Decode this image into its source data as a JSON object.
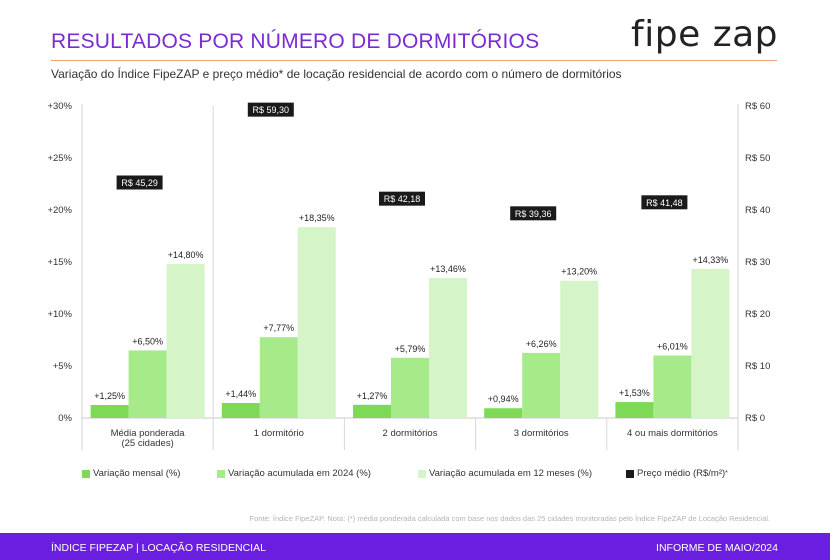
{
  "header": {
    "title": "RESULTADOS POR NÚMERO DE DORMITÓRIOS",
    "subtitle": "Variação do Índice FipeZAP e preço médio* de locação residencial de acordo com o número de dormitórios",
    "logo_fipe": "fipe",
    "logo_zap": "zap"
  },
  "chart_data": {
    "type": "bar",
    "categories": [
      "Média ponderada\n(25 cidades)",
      "1 dormitório",
      "2 dormitórios",
      "3 dormitórios",
      "4 ou mais dormitórios"
    ],
    "series": [
      {
        "name": "Variação mensal (%)",
        "axis": "left",
        "values": [
          1.25,
          1.44,
          1.27,
          0.94,
          1.53
        ],
        "labels": [
          "+1,25%",
          "+1,44%",
          "+1,27%",
          "+0,94%",
          "+1,53%"
        ],
        "color": "#7ed957"
      },
      {
        "name": "Variação acumulada em 2024 (%)",
        "axis": "left",
        "values": [
          6.5,
          7.77,
          5.79,
          6.26,
          6.01
        ],
        "labels": [
          "+6,50%",
          "+7,77%",
          "+5,79%",
          "+6,26%",
          "+6,01%"
        ],
        "color": "#a6ea8a"
      },
      {
        "name": "Variação acumulada em 12 meses (%)",
        "axis": "left",
        "values": [
          14.8,
          18.35,
          13.46,
          13.2,
          14.33
        ],
        "labels": [
          "+14,80%",
          "+18,35%",
          "+13,46%",
          "+13,20%",
          "+14,33%"
        ],
        "color": "#d5f5c8"
      },
      {
        "name": "Preço médio (R$/m²)",
        "axis": "right",
        "values": [
          45.29,
          59.3,
          42.18,
          39.36,
          41.48
        ],
        "labels": [
          "R$ 45,29",
          "R$ 59,30",
          "R$ 42,18",
          "R$ 39,36",
          "R$ 41,48"
        ],
        "color": "#1a1a1a"
      }
    ],
    "y_left": {
      "ylim": [
        0,
        30
      ],
      "ticks": [
        "0%",
        "+5%",
        "+10%",
        "+15%",
        "+20%",
        "+25%",
        "+30%"
      ]
    },
    "y_right": {
      "ylim": [
        0,
        60
      ],
      "ticks": [
        "R$ 0",
        "R$ 10",
        "R$ 20",
        "R$ 30",
        "R$ 40",
        "R$ 50",
        "R$ 60"
      ]
    },
    "grid": false,
    "legend": "bottom"
  },
  "legend": {
    "items": [
      {
        "label": "Variação mensal (%)",
        "color": "#7ed957"
      },
      {
        "label": "Variação acumulada em 2024 (%)",
        "color": "#a6ea8a"
      },
      {
        "label": "Variação acumulada em 12 meses (%)",
        "color": "#d5f5c8"
      },
      {
        "label": "Preço médio (R$/m²)",
        "color": "#1a1a1a",
        "sup": "*"
      }
    ]
  },
  "source": "Fonte: Índice FipeZAP. Nota: (*) média ponderada calculada com base nos dados das 25 cidades monitoradas pelo Índice FipeZAP de Locação Residencial.",
  "footer": {
    "left": "ÍNDICE FIPEZAP | LOCAÇÃO RESIDENCIAL",
    "right": "INFORME DE MAIO/2024"
  }
}
